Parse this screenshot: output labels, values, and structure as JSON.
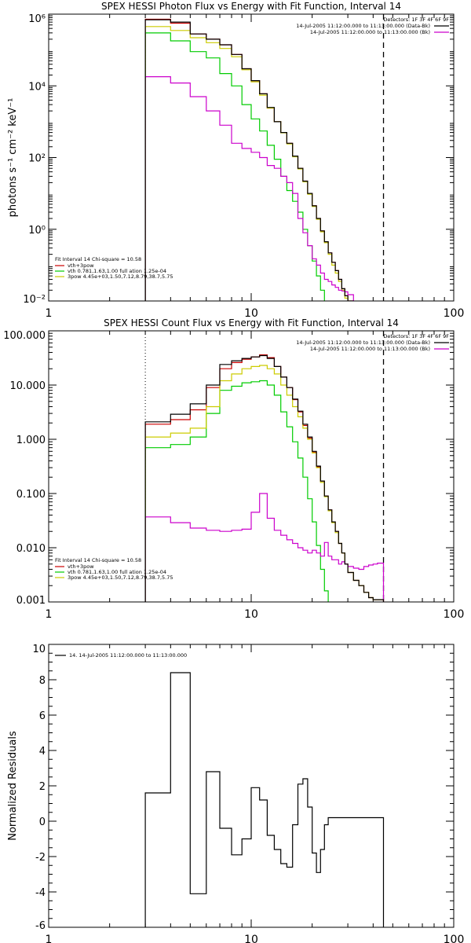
{
  "chart_data": [
    {
      "type": "line",
      "title": "SPEX HESSI Photon Flux vs Energy with Fit Function, Interval 14",
      "ylabel": "photons s⁻¹ cm⁻² keV⁻¹",
      "xlabel": "",
      "xscale": "log",
      "yscale": "log",
      "xlim": [
        1,
        100
      ],
      "ylim": [
        0.01,
        1000000
      ],
      "x_ticks": [
        {
          "v": 1,
          "label": "1"
        },
        {
          "v": 10,
          "label": "10"
        },
        {
          "v": 100,
          "label": "100"
        }
      ],
      "y_ticks": [
        {
          "v": 0.01,
          "label": "10⁻²"
        },
        {
          "v": 1,
          "label": "10⁰"
        },
        {
          "v": 100,
          "label": "10²"
        },
        {
          "v": 10000,
          "label": "10⁴"
        },
        {
          "v": 1000000,
          "label": "10⁶"
        }
      ],
      "vlines": [
        {
          "x": 3,
          "style": "dotted"
        },
        {
          "x": 45,
          "style": "dashed"
        }
      ],
      "legend_top": {
        "position": "top-right",
        "header": "Detectors: 1F 3F 4F 6F 9F",
        "entries": [
          {
            "label": "14-Jul-2005 11:12:00.000 to 11:13:00.000 (Data-Bk)",
            "color": "#000000"
          },
          {
            "label": "14-Jul-2005 11:12:00.000 to 11:13:00.000 (Bk)",
            "color": "#cc00cc"
          }
        ]
      },
      "legend_fit": {
        "position": "bottom-left",
        "header": "Fit Interval 14   Chi-square = 10.58",
        "entries": [
          {
            "label": "vth+3pow",
            "color": "#cc0000"
          },
          {
            "label": "vth 0.781,1.63,1.00  full ation 1.25e-04",
            "color": "#00cc00"
          },
          {
            "label": "3pow 4.45e+03,1.50,7.12,8.79,38.7,5.75",
            "color": "#cccc00"
          }
        ]
      },
      "bin_edges": [
        3,
        4,
        5,
        6,
        7,
        8,
        9,
        10,
        11,
        12,
        13,
        14,
        15,
        16,
        17,
        18,
        19,
        20,
        21,
        22,
        23,
        24,
        25,
        26,
        27,
        28,
        29,
        30,
        32,
        34,
        36,
        38,
        40,
        42,
        45
      ],
      "series": [
        {
          "color": "#000000",
          "values": [
            700000,
            600000,
            280000,
            200000,
            140000,
            75000,
            30000,
            14000,
            6000,
            2500,
            1000,
            500,
            250,
            110,
            50,
            22,
            10,
            4.5,
            2,
            0.9,
            0.45,
            0.22,
            0.12,
            0.07,
            0.04,
            0.022,
            0.014,
            0.01
          ]
        },
        {
          "color": "#cc0000",
          "values": [
            720000,
            560000,
            280000,
            200000,
            140000,
            75000,
            30000,
            14000,
            6000,
            2400,
            1000,
            500,
            250,
            110,
            50,
            22,
            10,
            4.5,
            2,
            0.9,
            0.45,
            0.22,
            0.12,
            0.07,
            0.04,
            0.022,
            0.014,
            0.01
          ]
        },
        {
          "color": "#00cc00",
          "values": [
            300000,
            180000,
            90000,
            60000,
            22000,
            10000,
            3000,
            1200,
            550,
            220,
            90,
            30,
            12,
            6,
            3,
            1,
            0.35,
            0.13,
            0.05,
            0.02,
            0.008
          ]
        },
        {
          "color": "#cccc00",
          "values": [
            450000,
            350000,
            220000,
            160000,
            110000,
            65000,
            28000,
            13000,
            5500,
            2400,
            1000,
            490,
            240,
            105,
            48,
            21,
            9.5,
            4.3,
            1.9,
            0.85,
            0.42,
            0.2,
            0.1,
            0.06,
            0.035,
            0.02,
            0.012,
            0.009
          ]
        },
        {
          "color": "#cc00cc",
          "values": [
            18000,
            12000,
            5000,
            2000,
            800,
            250,
            180,
            140,
            100,
            60,
            50,
            30,
            20,
            10,
            2,
            0.8,
            0.35,
            0.15,
            0.1,
            0.06,
            0.04,
            0.035,
            0.028,
            0.024,
            0.02,
            0.019,
            0.018,
            0.015
          ]
        }
      ]
    },
    {
      "type": "line",
      "title": "SPEX HESSI Count Flux vs Energy with Fit Function, Interval 14",
      "ylabel": "",
      "xlabel": "",
      "xscale": "log",
      "yscale": "log",
      "xlim": [
        1,
        100
      ],
      "ylim": [
        0.001,
        100
      ],
      "x_ticks": [
        {
          "v": 1,
          "label": "1"
        },
        {
          "v": 10,
          "label": "10"
        },
        {
          "v": 100,
          "label": "100"
        }
      ],
      "y_ticks": [
        {
          "v": 0.001,
          "label": "0.001"
        },
        {
          "v": 0.01,
          "label": "0.010"
        },
        {
          "v": 0.1,
          "label": "0.100"
        },
        {
          "v": 1,
          "label": "1.000"
        },
        {
          "v": 10,
          "label": "10.000"
        },
        {
          "v": 100,
          "label": "100.000"
        }
      ],
      "vlines": [
        {
          "x": 3,
          "style": "dotted"
        },
        {
          "x": 45,
          "style": "dashed"
        }
      ],
      "legend_top": {
        "position": "top-right",
        "header": "Detectors: 1F 3F 4F 6F 9F",
        "entries": [
          {
            "label": "14-Jul-2005 11:12:00.000 to 11:13:00.000 (Data-Bk)",
            "color": "#000000"
          },
          {
            "label": "14-Jul-2005 11:12:00.000 to 11:13:00.000 (Bk)",
            "color": "#cc00cc"
          }
        ]
      },
      "legend_fit": {
        "position": "bottom-left",
        "header": "Fit Interval 14   Chi-square = 10.58",
        "entries": [
          {
            "label": "vth+3pow",
            "color": "#cc0000"
          },
          {
            "label": "vth 0.781,1.63,1.00  full ation 1.25e-04",
            "color": "#00cc00"
          },
          {
            "label": "3pow 4.45e+03,1.50,7.12,8.79,38.7,5.75",
            "color": "#cccc00"
          }
        ]
      },
      "bin_edges": [
        3,
        4,
        5,
        6,
        7,
        8,
        9,
        10,
        11,
        12,
        13,
        14,
        15,
        16,
        17,
        18,
        19,
        20,
        21,
        22,
        23,
        24,
        25,
        26,
        27,
        28,
        29,
        30,
        32,
        34,
        36,
        38,
        40,
        42,
        45,
        50
      ],
      "series": [
        {
          "color": "#000000",
          "values": [
            2.1,
            2.9,
            4.5,
            10,
            24,
            28,
            31,
            33,
            35,
            31,
            22,
            14,
            9,
            5.5,
            3.3,
            1.9,
            1.1,
            0.6,
            0.32,
            0.17,
            0.09,
            0.05,
            0.03,
            0.02,
            0.012,
            0.008,
            0.005,
            0.0035,
            0.0025,
            0.002,
            0.0015,
            0.0012,
            0.0011,
            0.0011,
            0.00065
          ]
        },
        {
          "color": "#cc0000",
          "values": [
            1.9,
            2.3,
            3.5,
            9,
            20,
            26,
            30,
            33,
            36,
            32,
            22,
            14,
            9,
            5.4,
            3.2,
            1.8,
            1.05,
            0.58,
            0.31,
            0.17,
            0.09,
            0.05,
            0.03,
            0.02,
            0.012,
            0.008,
            0.005,
            0.0035,
            0.0025,
            0.002,
            0.0015,
            0.0012,
            0.0011,
            0.0011,
            0.00065
          ]
        },
        {
          "color": "#00cc00",
          "values": [
            0.7,
            0.8,
            1.1,
            3,
            8,
            9.5,
            11,
            11.5,
            12,
            10,
            6.5,
            3.2,
            1.7,
            0.9,
            0.45,
            0.2,
            0.08,
            0.03,
            0.011,
            0.004,
            0.0016,
            0.0006
          ]
        },
        {
          "color": "#cccc00",
          "values": [
            1.1,
            1.3,
            1.6,
            4,
            12,
            16,
            20,
            22,
            23,
            20,
            16,
            10,
            6.5,
            4,
            2.6,
            1.6,
            1.0,
            0.56,
            0.3,
            0.16,
            0.087,
            0.048,
            0.029,
            0.019,
            0.012,
            0.008,
            0.005,
            0.0035,
            0.0025,
            0.002,
            0.0015,
            0.0012,
            0.0011,
            0.0011,
            0.00065
          ]
        },
        {
          "color": "#cc00cc",
          "values": [
            0.037,
            0.029,
            0.023,
            0.021,
            0.02,
            0.021,
            0.022,
            0.045,
            0.1,
            0.035,
            0.021,
            0.017,
            0.014,
            0.012,
            0.01,
            0.009,
            0.008,
            0.009,
            0.008,
            0.007,
            0.0125,
            0.007,
            0.006,
            0.006,
            0.005,
            0.0055,
            0.005,
            0.0045,
            0.0042,
            0.004,
            0.0045,
            0.0048,
            0.005,
            0.0052
          ]
        }
      ]
    },
    {
      "type": "line",
      "title": "",
      "ylabel": "Normalized Residuals",
      "xlabel": "",
      "xscale": "log",
      "yscale": "linear",
      "xlim": [
        1,
        100
      ],
      "ylim": [
        -6,
        10
      ],
      "x_ticks": [
        {
          "v": 1,
          "label": "1"
        },
        {
          "v": 10,
          "label": "10"
        },
        {
          "v": 100,
          "label": "100"
        }
      ],
      "y_ticks": [
        {
          "v": -6,
          "label": "-6"
        },
        {
          "v": -4,
          "label": "-4"
        },
        {
          "v": -2,
          "label": "-2"
        },
        {
          "v": 0,
          "label": "0"
        },
        {
          "v": 2,
          "label": "2"
        },
        {
          "v": 4,
          "label": "4"
        },
        {
          "v": 6,
          "label": "6"
        },
        {
          "v": 8,
          "label": "8"
        },
        {
          "v": 10,
          "label": "10"
        }
      ],
      "legend": {
        "position": "top-left",
        "entries": [
          {
            "label": "14. 14-Jul-2005 11:12:00.000 to 11:13:00.000",
            "color": "#000000"
          }
        ]
      },
      "bin_edges": [
        3,
        4,
        5,
        6,
        7,
        8,
        9,
        10,
        11,
        12,
        13,
        14,
        15,
        16,
        17,
        18,
        19,
        20,
        21,
        22,
        23,
        24,
        25,
        26,
        27,
        28,
        29,
        30,
        32,
        34,
        36,
        38,
        40,
        42,
        45
      ],
      "series": [
        {
          "color": "#000000",
          "values": [
            1.6,
            8.4,
            -4.1,
            2.8,
            -0.4,
            -1.9,
            -1.0,
            1.9,
            1.2,
            -0.8,
            -1.6,
            -2.4,
            -2.6,
            -0.2,
            2.1,
            2.4,
            0.8,
            -1.8,
            -2.9,
            -1.6,
            -0.2,
            0.2,
            0.2,
            0.2,
            0.2,
            0.2,
            0.2,
            0.2,
            0.2,
            0.2,
            0.2,
            0.2,
            0.2,
            0.2
          ]
        }
      ]
    }
  ]
}
